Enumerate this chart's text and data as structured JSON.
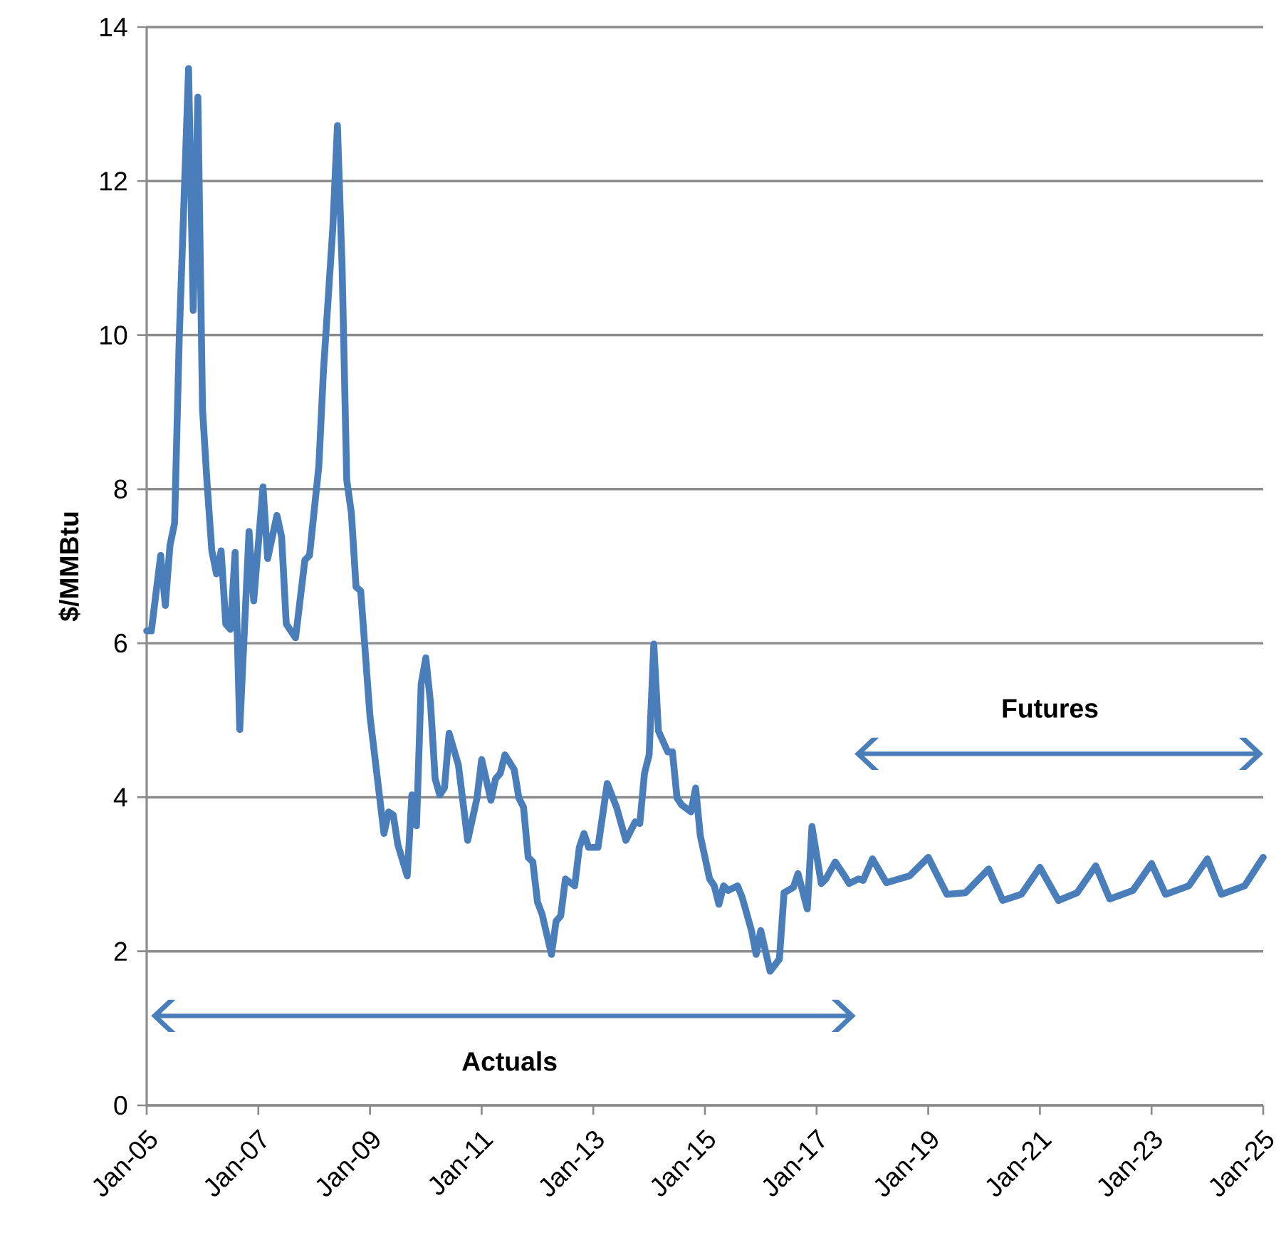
{
  "chart_data": {
    "type": "line",
    "ylabel": "$/MMBtu",
    "x": [
      "2005-01",
      "2005-02",
      "2005-04",
      "2005-05",
      "2005-06",
      "2005-07",
      "2005-08",
      "2005-10",
      "2005-11",
      "2005-12",
      "2006-01",
      "2006-02",
      "2006-03",
      "2006-04",
      "2006-05",
      "2006-06",
      "2006-07",
      "2006-08",
      "2006-09",
      "2006-11",
      "2006-12",
      "2007-02",
      "2007-03",
      "2007-05",
      "2007-06",
      "2007-07",
      "2007-09",
      "2007-11",
      "2007-12",
      "2008-02",
      "2008-03",
      "2008-05",
      "2008-06",
      "2008-07",
      "2008-08",
      "2008-09",
      "2008-10",
      "2008-11",
      "2009-01",
      "2009-04",
      "2009-05",
      "2009-06",
      "2009-07",
      "2009-09",
      "2009-10",
      "2009-11",
      "2009-12",
      "2010-01",
      "2010-02",
      "2010-03",
      "2010-04",
      "2010-05",
      "2010-06",
      "2010-08",
      "2010-10",
      "2010-12",
      "2011-01",
      "2011-03",
      "2011-04",
      "2011-05",
      "2011-06",
      "2011-08",
      "2011-09",
      "2011-10",
      "2011-11",
      "2011-12",
      "2012-01",
      "2012-02",
      "2012-04",
      "2012-05",
      "2012-06",
      "2012-07",
      "2012-09",
      "2012-10",
      "2012-11",
      "2012-12",
      "2013-02",
      "2013-04",
      "2013-06",
      "2013-08",
      "2013-10",
      "2013-11",
      "2013-12",
      "2014-01",
      "2014-02",
      "2014-03",
      "2014-05",
      "2014-06",
      "2014-07",
      "2014-08",
      "2014-10",
      "2014-11",
      "2014-12",
      "2015-02",
      "2015-03",
      "2015-04",
      "2015-05",
      "2015-06",
      "2015-08",
      "2015-09",
      "2015-11",
      "2015-12",
      "2016-01",
      "2016-03",
      "2016-05",
      "2016-06",
      "2016-08",
      "2016-09",
      "2016-11",
      "2016-12",
      "2017-02",
      "2017-03",
      "2017-05",
      "2017-07",
      "2017-08",
      "2017-10",
      "2017-11",
      "2018-01",
      "2018-04",
      "2018-09",
      "2019-01",
      "2019-05",
      "2019-09",
      "2020-02",
      "2020-05",
      "2020-09",
      "2021-01",
      "2021-05",
      "2021-09",
      "2022-01",
      "2022-04",
      "2022-09",
      "2023-01",
      "2023-04",
      "2023-09",
      "2024-01",
      "2024-04",
      "2024-09",
      "2025-01"
    ],
    "series": [
      {
        "color": "#4a7ebb",
        "values": [
          6.16,
          6.16,
          7.14,
          6.49,
          7.27,
          7.56,
          9.97,
          13.46,
          10.32,
          13.09,
          9.04,
          8.06,
          7.2,
          6.9,
          7.2,
          6.25,
          6.18,
          7.18,
          4.88,
          7.45,
          6.55,
          8.03,
          7.1,
          7.66,
          7.38,
          6.25,
          6.07,
          7.08,
          7.14,
          8.3,
          9.54,
          11.39,
          12.72,
          10.89,
          8.12,
          7.69,
          6.73,
          6.68,
          5.05,
          3.53,
          3.81,
          3.77,
          3.38,
          2.98,
          4.03,
          3.63,
          5.47,
          5.81,
          5.23,
          4.24,
          4.03,
          4.12,
          4.83,
          4.42,
          3.44,
          3.99,
          4.49,
          3.96,
          4.24,
          4.31,
          4.55,
          4.36,
          3.99,
          3.87,
          3.22,
          3.16,
          2.64,
          2.48,
          1.96,
          2.39,
          2.46,
          2.94,
          2.85,
          3.35,
          3.53,
          3.35,
          3.35,
          4.18,
          3.87,
          3.44,
          3.68,
          3.66,
          4.31,
          4.55,
          5.99,
          4.86,
          4.59,
          4.59,
          3.99,
          3.9,
          3.81,
          4.12,
          3.5,
          2.94,
          2.85,
          2.61,
          2.85,
          2.79,
          2.85,
          2.7,
          2.27,
          1.96,
          2.27,
          1.74,
          1.9,
          2.76,
          2.83,
          3.01,
          2.55,
          3.62,
          2.88,
          2.94,
          3.16,
          2.98,
          2.88,
          2.94,
          2.92,
          3.2,
          2.89,
          2.98,
          3.22,
          2.74,
          2.76,
          3.07,
          2.66,
          2.74,
          3.09,
          2.66,
          2.76,
          3.11,
          2.68,
          2.79,
          3.14,
          2.74,
          2.85,
          3.2,
          2.74,
          2.85,
          3.22
        ]
      }
    ],
    "xlim": [
      "2005-01",
      "2025-01"
    ],
    "xticks": [
      {
        "value": "2005-01",
        "label": "Jan-05"
      },
      {
        "value": "2007-01",
        "label": "Jan-07"
      },
      {
        "value": "2009-01",
        "label": "Jan-09"
      },
      {
        "value": "2011-01",
        "label": "Jan-11"
      },
      {
        "value": "2013-01",
        "label": "Jan-13"
      },
      {
        "value": "2015-01",
        "label": "Jan-15"
      },
      {
        "value": "2017-01",
        "label": "Jan-17"
      },
      {
        "value": "2019-01",
        "label": "Jan-19"
      },
      {
        "value": "2021-01",
        "label": "Jan-21"
      },
      {
        "value": "2023-01",
        "label": "Jan-23"
      },
      {
        "value": "2025-01",
        "label": "Jan-25"
      }
    ],
    "ylim": [
      0,
      14
    ],
    "yticks": [
      0,
      2,
      4,
      6,
      8,
      10,
      12,
      14
    ],
    "grid": "y",
    "line_style": "solid",
    "annotations": [
      "Actuals",
      "Futures"
    ]
  }
}
